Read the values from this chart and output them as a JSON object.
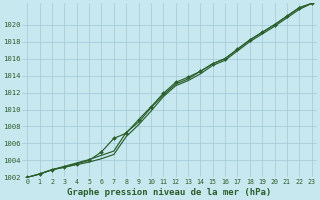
{
  "hours": [
    0,
    1,
    2,
    3,
    4,
    5,
    6,
    7,
    8,
    9,
    10,
    11,
    12,
    13,
    14,
    15,
    16,
    17,
    18,
    19,
    20,
    21,
    22,
    23
  ],
  "line_upper": [
    1002.0,
    1002.4,
    1002.9,
    1003.3,
    1003.7,
    1004.1,
    1004.6,
    1005.1,
    1007.3,
    1008.5,
    1010.2,
    1011.7,
    1013.0,
    1013.6,
    1014.5,
    1015.4,
    1016.0,
    1017.1,
    1018.2,
    1019.1,
    1020.0,
    1021.0,
    1022.0,
    1022.5
  ],
  "line_lower": [
    1002.0,
    1002.4,
    1002.9,
    1003.2,
    1003.5,
    1003.8,
    1004.2,
    1004.7,
    1006.8,
    1008.2,
    1009.8,
    1011.5,
    1012.8,
    1013.4,
    1014.2,
    1015.2,
    1015.8,
    1016.9,
    1018.0,
    1018.9,
    1019.8,
    1020.8,
    1021.8,
    1022.5
  ],
  "line_jagged": [
    1002.0,
    1002.4,
    1002.9,
    1003.2,
    1003.6,
    1004.0,
    1005.0,
    1006.6,
    1007.2,
    1008.8,
    1010.3,
    1011.9,
    1013.2,
    1013.8,
    1014.5,
    1015.4,
    1016.0,
    1017.1,
    1018.2,
    1019.1,
    1020.0,
    1021.0,
    1022.0,
    1022.5
  ],
  "ylim_min": 1002,
  "ylim_max": 1022,
  "ytick_min": 1002,
  "ytick_max": 1020,
  "ytick_step": 2,
  "bg_color": "#c8e8f0",
  "grid_color": "#a0c8d8",
  "line_color": "#2a5e2a",
  "xlabel": "Graphe pression niveau de la mer (hPa)"
}
